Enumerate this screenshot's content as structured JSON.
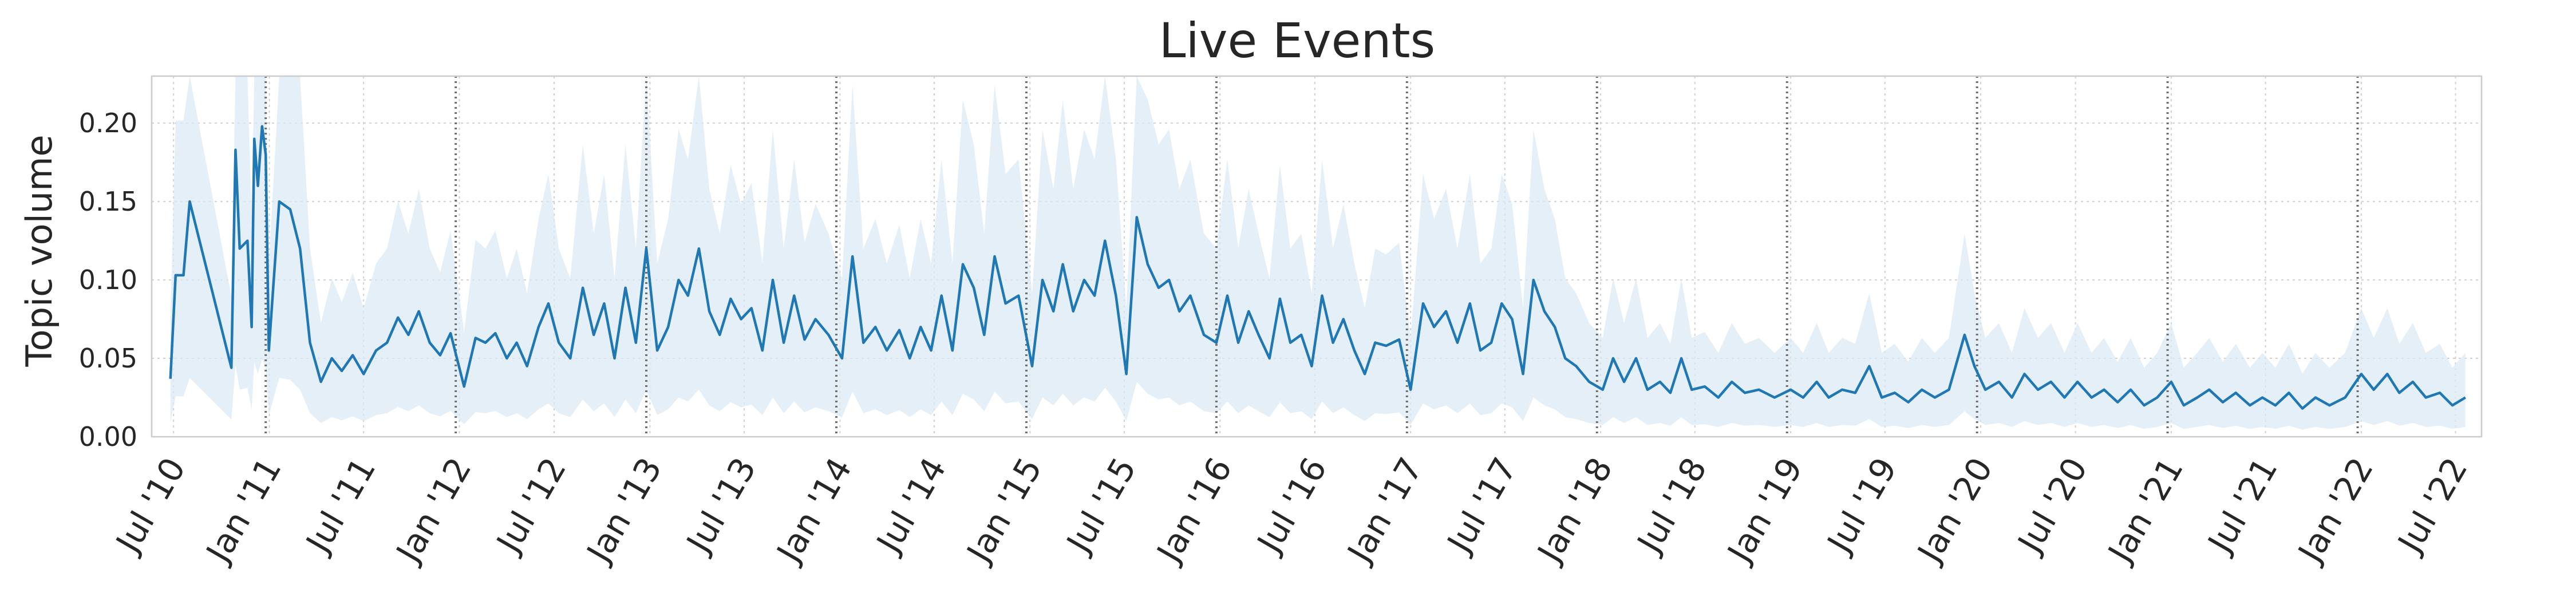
{
  "chart_data": {
    "type": "line",
    "title": "Live Events",
    "ylabel": "Topic volume",
    "xlabel": "",
    "x_range": [
      "2010-05-20",
      "2022-08-20"
    ],
    "ylim": [
      0,
      0.23
    ],
    "yticks": [
      0.0,
      0.05,
      0.1,
      0.15,
      0.2
    ],
    "ytick_labels": [
      "0.00",
      "0.05",
      "0.10",
      "0.15",
      "0.20"
    ],
    "xticks": [
      "2010-07-01",
      "2011-01-01",
      "2011-07-01",
      "2012-01-01",
      "2012-07-01",
      "2013-01-01",
      "2013-07-01",
      "2014-01-01",
      "2014-07-01",
      "2015-01-01",
      "2015-07-01",
      "2016-01-01",
      "2016-07-01",
      "2017-01-01",
      "2017-07-01",
      "2018-01-01",
      "2018-07-01",
      "2019-01-01",
      "2019-07-01",
      "2020-01-01",
      "2020-07-01",
      "2021-01-01",
      "2021-07-01",
      "2022-01-01",
      "2022-07-01"
    ],
    "xtick_labels": [
      "Jul '10",
      "Jan '11",
      "Jul '11",
      "Jan '12",
      "Jul '12",
      "Jan '13",
      "Jul '13",
      "Jan '14",
      "Jul '14",
      "Jan '15",
      "Jul '15",
      "Jan '16",
      "Jul '16",
      "Jan '17",
      "Jul '17",
      "Jan '18",
      "Jul '18",
      "Jan '19",
      "Jul '19",
      "Jan '20",
      "Jul '20",
      "Jan '21",
      "Jul '21",
      "Jan '22",
      "Jul '22"
    ],
    "vertical_markers": [
      "2010-12-25",
      "2011-12-25",
      "2012-12-25",
      "2013-12-25",
      "2014-12-25",
      "2015-12-25",
      "2016-12-25",
      "2017-12-25",
      "2018-12-25",
      "2019-12-25",
      "2020-12-25",
      "2021-12-25"
    ],
    "grid": true,
    "series": [
      {
        "line_color": "#1f77b4",
        "band_color": "#dbe9f6",
        "points": [
          [
            "2010-06-25",
            0.037
          ],
          [
            "2010-07-05",
            0.103
          ],
          [
            "2010-07-20",
            0.103
          ],
          [
            "2010-08-01",
            0.15
          ],
          [
            "2010-10-20",
            0.044
          ],
          [
            "2010-10-28",
            0.183
          ],
          [
            "2010-11-05",
            0.12
          ],
          [
            "2010-11-20",
            0.125
          ],
          [
            "2010-11-28",
            0.07
          ],
          [
            "2010-12-03",
            0.19
          ],
          [
            "2010-12-10",
            0.16
          ],
          [
            "2010-12-18",
            0.198
          ],
          [
            "2010-12-25",
            0.18
          ],
          [
            "2010-12-31",
            0.055
          ],
          [
            "2011-01-20",
            0.15
          ],
          [
            "2011-02-10",
            0.145
          ],
          [
            "2011-03-01",
            0.12
          ],
          [
            "2011-03-20",
            0.06
          ],
          [
            "2011-04-10",
            0.035
          ],
          [
            "2011-05-01",
            0.05
          ],
          [
            "2011-05-20",
            0.042
          ],
          [
            "2011-06-10",
            0.052
          ],
          [
            "2011-07-01",
            0.04
          ],
          [
            "2011-07-25",
            0.055
          ],
          [
            "2011-08-15",
            0.06
          ],
          [
            "2011-09-05",
            0.076
          ],
          [
            "2011-09-25",
            0.065
          ],
          [
            "2011-10-15",
            0.08
          ],
          [
            "2011-11-05",
            0.06
          ],
          [
            "2011-11-25",
            0.052
          ],
          [
            "2011-12-15",
            0.066
          ],
          [
            "2012-01-10",
            0.032
          ],
          [
            "2012-02-01",
            0.063
          ],
          [
            "2012-02-20",
            0.06
          ],
          [
            "2012-03-10",
            0.066
          ],
          [
            "2012-04-01",
            0.05
          ],
          [
            "2012-04-20",
            0.06
          ],
          [
            "2012-05-10",
            0.045
          ],
          [
            "2012-06-01",
            0.07
          ],
          [
            "2012-06-20",
            0.085
          ],
          [
            "2012-07-10",
            0.06
          ],
          [
            "2012-08-01",
            0.05
          ],
          [
            "2012-08-25",
            0.095
          ],
          [
            "2012-09-15",
            0.065
          ],
          [
            "2012-10-05",
            0.085
          ],
          [
            "2012-10-25",
            0.05
          ],
          [
            "2012-11-15",
            0.095
          ],
          [
            "2012-12-05",
            0.06
          ],
          [
            "2012-12-25",
            0.12
          ],
          [
            "2013-01-15",
            0.055
          ],
          [
            "2013-02-05",
            0.07
          ],
          [
            "2013-02-25",
            0.1
          ],
          [
            "2013-03-15",
            0.09
          ],
          [
            "2013-04-05",
            0.12
          ],
          [
            "2013-04-25",
            0.08
          ],
          [
            "2013-05-15",
            0.065
          ],
          [
            "2013-06-05",
            0.088
          ],
          [
            "2013-06-25",
            0.075
          ],
          [
            "2013-07-15",
            0.082
          ],
          [
            "2013-08-05",
            0.055
          ],
          [
            "2013-08-25",
            0.1
          ],
          [
            "2013-09-15",
            0.06
          ],
          [
            "2013-10-05",
            0.09
          ],
          [
            "2013-10-25",
            0.062
          ],
          [
            "2013-11-15",
            0.075
          ],
          [
            "2013-12-10",
            0.065
          ],
          [
            "2014-01-05",
            0.05
          ],
          [
            "2014-01-25",
            0.115
          ],
          [
            "2014-02-15",
            0.06
          ],
          [
            "2014-03-10",
            0.07
          ],
          [
            "2014-04-01",
            0.055
          ],
          [
            "2014-04-25",
            0.068
          ],
          [
            "2014-05-15",
            0.05
          ],
          [
            "2014-06-05",
            0.07
          ],
          [
            "2014-06-25",
            0.055
          ],
          [
            "2014-07-15",
            0.09
          ],
          [
            "2014-08-05",
            0.055
          ],
          [
            "2014-08-25",
            0.11
          ],
          [
            "2014-09-15",
            0.095
          ],
          [
            "2014-10-05",
            0.065
          ],
          [
            "2014-10-25",
            0.115
          ],
          [
            "2014-11-15",
            0.085
          ],
          [
            "2014-12-10",
            0.09
          ],
          [
            "2015-01-05",
            0.045
          ],
          [
            "2015-01-25",
            0.1
          ],
          [
            "2015-02-15",
            0.08
          ],
          [
            "2015-03-05",
            0.11
          ],
          [
            "2015-03-25",
            0.08
          ],
          [
            "2015-04-15",
            0.1
          ],
          [
            "2015-05-05",
            0.09
          ],
          [
            "2015-05-25",
            0.125
          ],
          [
            "2015-06-15",
            0.09
          ],
          [
            "2015-07-05",
            0.04
          ],
          [
            "2015-07-25",
            0.14
          ],
          [
            "2015-08-15",
            0.11
          ],
          [
            "2015-09-05",
            0.095
          ],
          [
            "2015-09-25",
            0.1
          ],
          [
            "2015-10-15",
            0.08
          ],
          [
            "2015-11-05",
            0.09
          ],
          [
            "2015-12-01",
            0.065
          ],
          [
            "2015-12-25",
            0.06
          ],
          [
            "2016-01-15",
            0.09
          ],
          [
            "2016-02-05",
            0.06
          ],
          [
            "2016-02-25",
            0.08
          ],
          [
            "2016-03-15",
            0.065
          ],
          [
            "2016-04-05",
            0.05
          ],
          [
            "2016-04-25",
            0.088
          ],
          [
            "2016-05-15",
            0.06
          ],
          [
            "2016-06-05",
            0.065
          ],
          [
            "2016-06-25",
            0.045
          ],
          [
            "2016-07-15",
            0.09
          ],
          [
            "2016-08-05",
            0.06
          ],
          [
            "2016-08-25",
            0.075
          ],
          [
            "2016-09-15",
            0.055
          ],
          [
            "2016-10-05",
            0.04
          ],
          [
            "2016-10-25",
            0.06
          ],
          [
            "2016-11-15",
            0.058
          ],
          [
            "2016-12-10",
            0.062
          ],
          [
            "2017-01-01",
            0.03
          ],
          [
            "2017-01-25",
            0.085
          ],
          [
            "2017-02-15",
            0.07
          ],
          [
            "2017-03-10",
            0.08
          ],
          [
            "2017-04-01",
            0.06
          ],
          [
            "2017-04-25",
            0.085
          ],
          [
            "2017-05-15",
            0.055
          ],
          [
            "2017-06-05",
            0.06
          ],
          [
            "2017-06-25",
            0.085
          ],
          [
            "2017-07-15",
            0.075
          ],
          [
            "2017-08-05",
            0.04
          ],
          [
            "2017-08-25",
            0.1
          ],
          [
            "2017-09-15",
            0.08
          ],
          [
            "2017-10-05",
            0.07
          ],
          [
            "2017-10-25",
            0.05
          ],
          [
            "2017-11-15",
            0.045
          ],
          [
            "2017-12-10",
            0.035
          ],
          [
            "2018-01-05",
            0.03
          ],
          [
            "2018-01-25",
            0.05
          ],
          [
            "2018-02-15",
            0.035
          ],
          [
            "2018-03-10",
            0.05
          ],
          [
            "2018-04-01",
            0.03
          ],
          [
            "2018-04-25",
            0.035
          ],
          [
            "2018-05-15",
            0.028
          ],
          [
            "2018-06-05",
            0.05
          ],
          [
            "2018-06-25",
            0.03
          ],
          [
            "2018-07-20",
            0.032
          ],
          [
            "2018-08-15",
            0.025
          ],
          [
            "2018-09-10",
            0.035
          ],
          [
            "2018-10-05",
            0.028
          ],
          [
            "2018-11-01",
            0.03
          ],
          [
            "2018-12-01",
            0.025
          ],
          [
            "2019-01-01",
            0.03
          ],
          [
            "2019-01-25",
            0.025
          ],
          [
            "2019-02-20",
            0.035
          ],
          [
            "2019-03-15",
            0.025
          ],
          [
            "2019-04-10",
            0.03
          ],
          [
            "2019-05-05",
            0.028
          ],
          [
            "2019-06-01",
            0.045
          ],
          [
            "2019-06-25",
            0.025
          ],
          [
            "2019-07-20",
            0.028
          ],
          [
            "2019-08-15",
            0.022
          ],
          [
            "2019-09-10",
            0.03
          ],
          [
            "2019-10-05",
            0.025
          ],
          [
            "2019-11-01",
            0.03
          ],
          [
            "2019-12-01",
            0.065
          ],
          [
            "2019-12-20",
            0.045
          ],
          [
            "2020-01-10",
            0.03
          ],
          [
            "2020-02-05",
            0.035
          ],
          [
            "2020-03-01",
            0.025
          ],
          [
            "2020-03-25",
            0.04
          ],
          [
            "2020-04-20",
            0.03
          ],
          [
            "2020-05-15",
            0.035
          ],
          [
            "2020-06-10",
            0.025
          ],
          [
            "2020-07-05",
            0.035
          ],
          [
            "2020-08-01",
            0.025
          ],
          [
            "2020-08-25",
            0.03
          ],
          [
            "2020-09-20",
            0.022
          ],
          [
            "2020-10-15",
            0.03
          ],
          [
            "2020-11-10",
            0.02
          ],
          [
            "2020-12-05",
            0.025
          ],
          [
            "2021-01-01",
            0.035
          ],
          [
            "2021-01-25",
            0.02
          ],
          [
            "2021-02-20",
            0.025
          ],
          [
            "2021-03-15",
            0.03
          ],
          [
            "2021-04-10",
            0.022
          ],
          [
            "2021-05-05",
            0.028
          ],
          [
            "2021-06-01",
            0.02
          ],
          [
            "2021-06-25",
            0.025
          ],
          [
            "2021-07-20",
            0.02
          ],
          [
            "2021-08-15",
            0.028
          ],
          [
            "2021-09-10",
            0.018
          ],
          [
            "2021-10-05",
            0.025
          ],
          [
            "2021-11-01",
            0.02
          ],
          [
            "2021-12-01",
            0.025
          ],
          [
            "2022-01-01",
            0.04
          ],
          [
            "2022-01-25",
            0.03
          ],
          [
            "2022-02-20",
            0.04
          ],
          [
            "2022-03-15",
            0.028
          ],
          [
            "2022-04-10",
            0.035
          ],
          [
            "2022-05-05",
            0.025
          ],
          [
            "2022-06-01",
            0.028
          ],
          [
            "2022-06-25",
            0.02
          ],
          [
            "2022-07-20",
            0.025
          ]
        ]
      }
    ]
  }
}
